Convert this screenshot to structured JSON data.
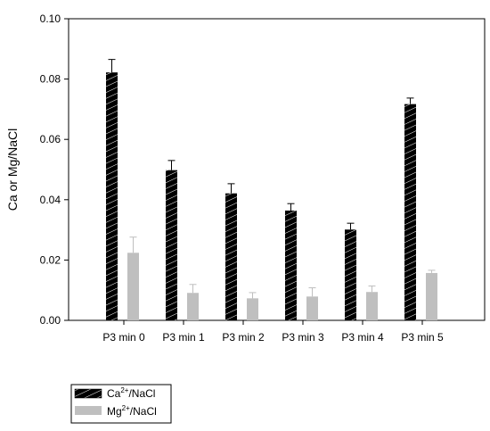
{
  "chart_data": {
    "type": "bar",
    "title": "",
    "xlabel": "",
    "ylabel": "Ca or Mg/NaCl",
    "ylim": [
      0,
      0.1
    ],
    "yticks": [
      "0.00",
      "0.02",
      "0.04",
      "0.06",
      "0.08",
      "0.10"
    ],
    "ytick_values": [
      0,
      0.02,
      0.04,
      0.06,
      0.08,
      0.1
    ],
    "categories": [
      "P3 min 0",
      "P3 min 1",
      "P3 min 2",
      "P3 min 3",
      "P3 min 4",
      "P3 min 5"
    ],
    "series": [
      {
        "name": "Ca2+/NaCl",
        "legend_main": "Ca",
        "legend_sup": "2+",
        "legend_rest": "/NaCl",
        "fill": "#000000",
        "pattern": "diagonal-hatch",
        "values": [
          0.0822,
          0.0498,
          0.0421,
          0.0364,
          0.0301,
          0.0717
        ],
        "errors": [
          0.0043,
          0.0032,
          0.0032,
          0.0023,
          0.0021,
          0.002
        ]
      },
      {
        "name": "Mg2+/NaCl",
        "legend_main": "Mg",
        "legend_sup": "2+",
        "legend_rest": "/NaCl",
        "fill": "#bfbfbf",
        "pattern": "solid",
        "values": [
          0.0224,
          0.0091,
          0.0073,
          0.0079,
          0.0094,
          0.0157
        ],
        "errors": [
          0.0052,
          0.0028,
          0.0019,
          0.0029,
          0.002,
          0.0009
        ]
      }
    ],
    "grid": false,
    "legend_position": "bottom-left"
  }
}
